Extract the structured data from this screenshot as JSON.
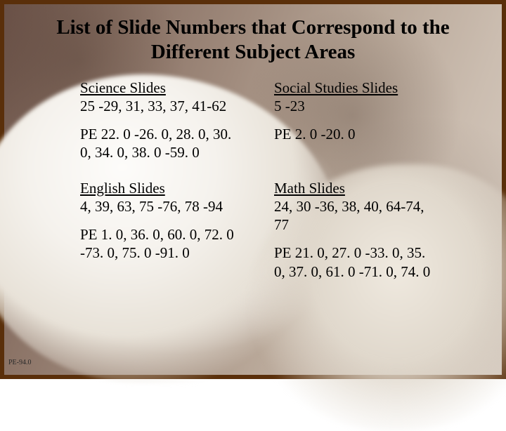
{
  "title": "List of Slide Numbers that Correspond to the Different Subject Areas",
  "footer": "PE-94.0",
  "layout": {
    "columns": 2,
    "rows": 2,
    "title_fontsize": 29,
    "body_fontsize": 21,
    "footer_fontsize": 10
  },
  "colors": {
    "border": "#5a2f0a",
    "text": "#000000",
    "bg_dark": "#6b5248",
    "bg_light": "#d8cdc2",
    "fur_white": "#fdfcfa"
  },
  "subjects": {
    "science": {
      "heading": "Science Slides",
      "slides": "25 -29, 31, 33, 37, 41-62",
      "pe": "PE 22. 0 -26. 0, 28. 0, 30. 0, 34. 0, 38. 0 -59. 0"
    },
    "social_studies": {
      "heading": "Social Studies Slides",
      "slides": "5 -23",
      "pe": "PE 2. 0 -20. 0"
    },
    "english": {
      "heading": "English Slides",
      "slides": "4, 39, 63, 75 -76, 78 -94",
      "pe": "PE 1. 0, 36. 0, 60. 0, 72. 0 -73. 0, 75. 0 -91. 0"
    },
    "math": {
      "heading": "Math Slides",
      "slides": "24, 30 -36, 38, 40, 64-74, 77",
      "pe": "PE 21. 0, 27. 0 -33. 0, 35. 0, 37. 0, 61. 0 -71. 0, 74. 0"
    }
  }
}
